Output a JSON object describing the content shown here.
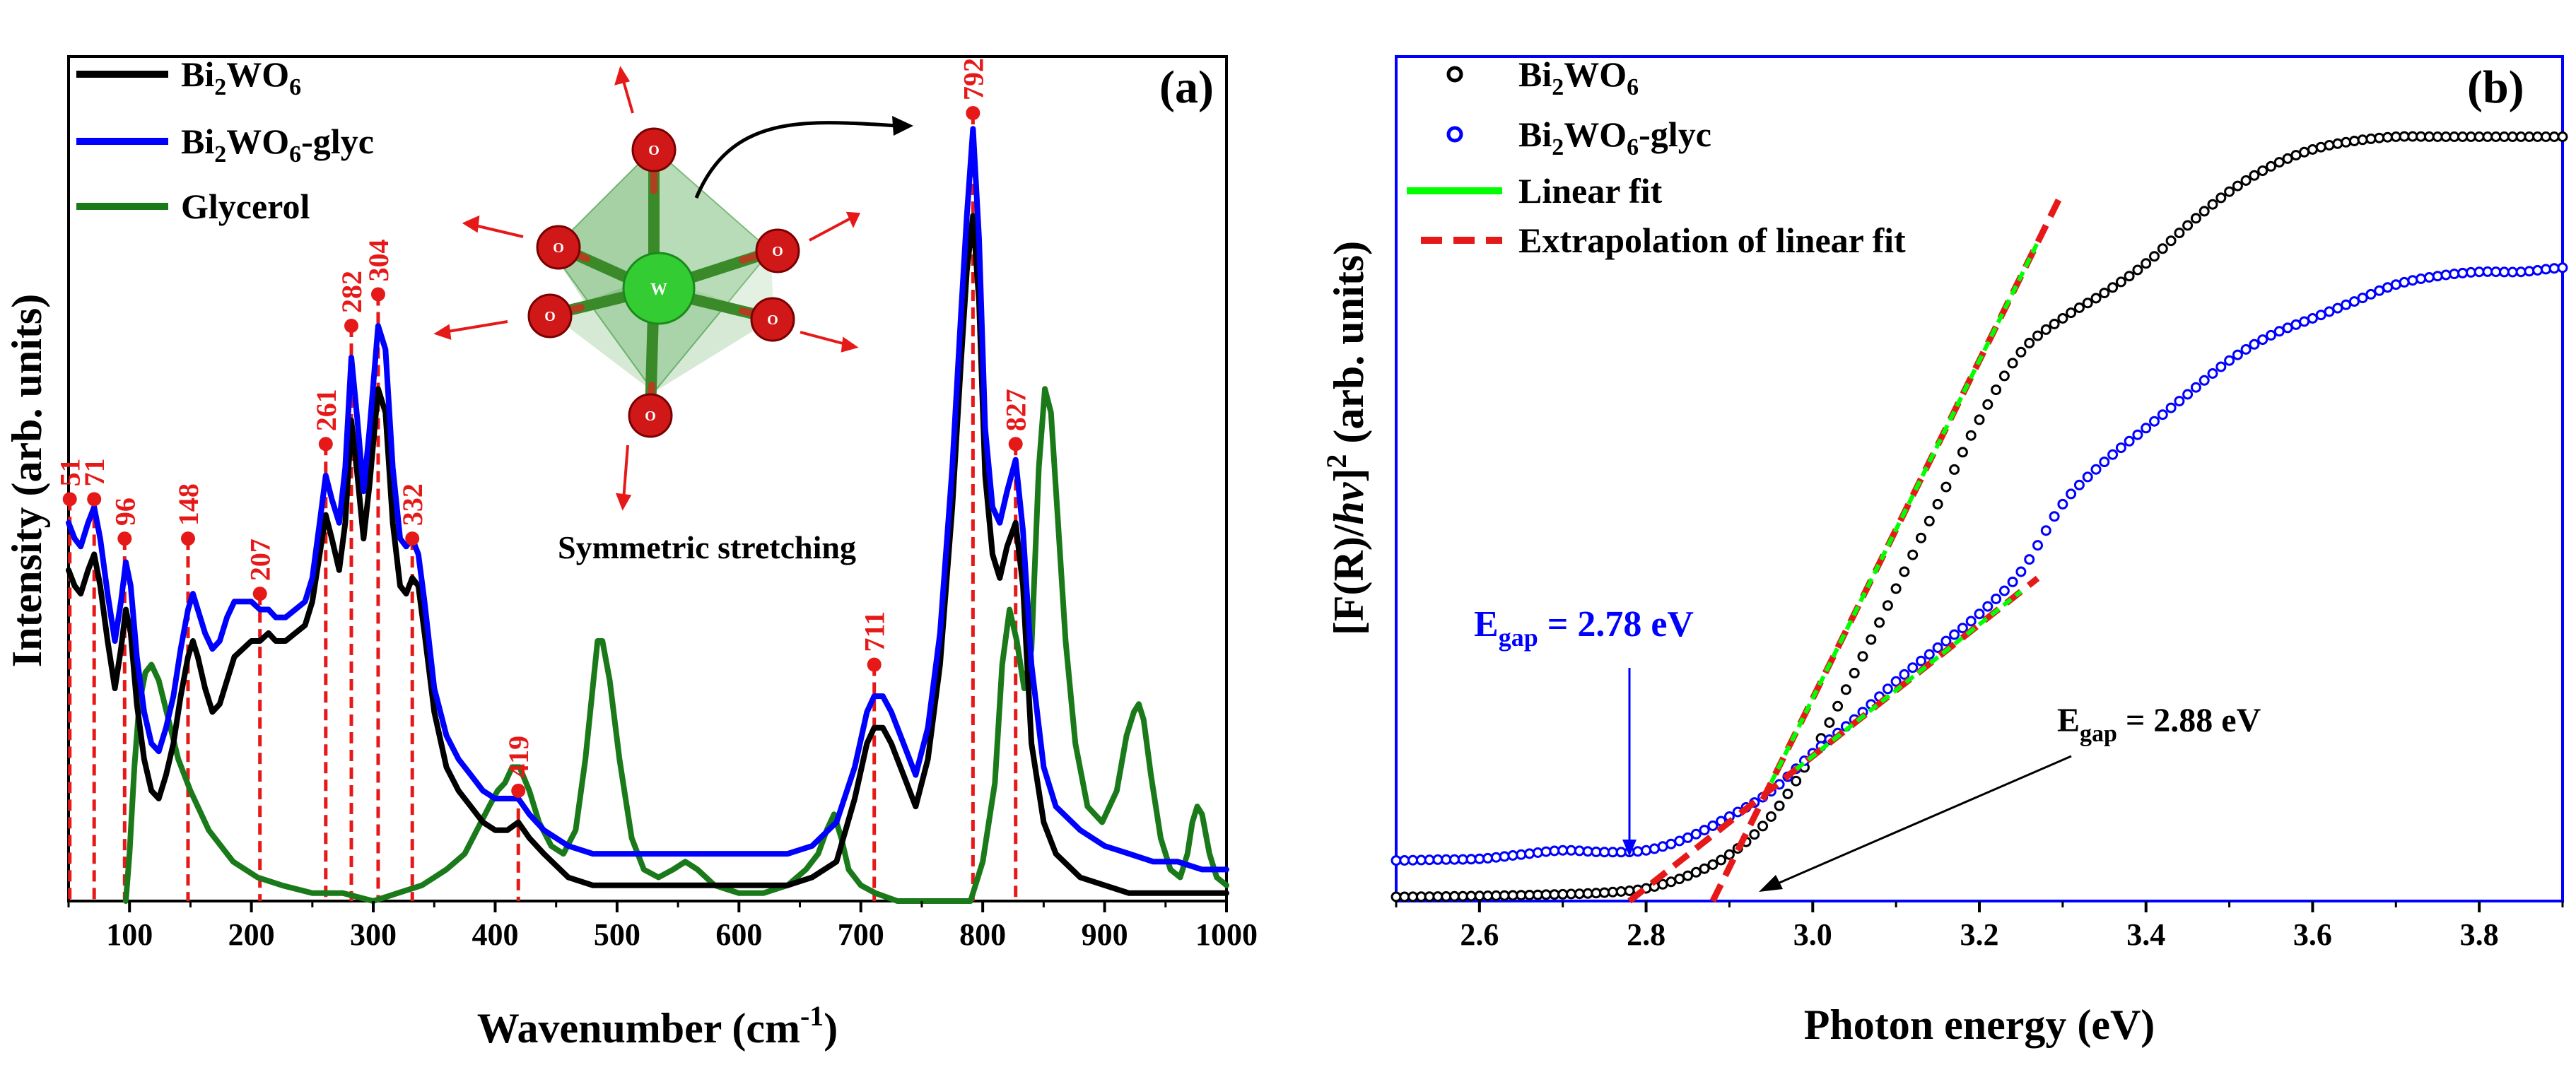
{
  "chart_data": [
    {
      "type": "line",
      "panel_label": "(a)",
      "xlabel": "Wavenumber (cm",
      "xlabel_sup": "-1",
      "xlabel_close": ")",
      "ylabel": "Intensity (arb. units)",
      "xlim": [
        50,
        1000
      ],
      "ylim": [
        0,
        1.0
      ],
      "xticks": [
        100,
        200,
        300,
        400,
        500,
        600,
        700,
        800,
        900,
        1000
      ],
      "xtick_labels": [
        "100",
        "200",
        "300",
        "400",
        "500",
        "600",
        "700",
        "800",
        "900",
        "1000"
      ],
      "colors": {
        "Bi2WO6": "#000000",
        "Bi2WO6-glyc": "#0000ff",
        "Glycerol": "#1a7a1a",
        "peaks": "#e61919"
      },
      "legend": [
        {
          "key": "Bi2WO6",
          "base": "Bi",
          "sub1": "2",
          "mid": "WO",
          "sub2": "6",
          "tail": ""
        },
        {
          "key": "Bi2WO6-glyc",
          "base": "Bi",
          "sub1": "2",
          "mid": "WO",
          "sub2": "6",
          "tail": "-glyc"
        },
        {
          "key": "Glycerol",
          "base": "Glycerol",
          "sub1": "",
          "mid": "",
          "sub2": "",
          "tail": ""
        }
      ],
      "inset_caption": "Symmetric stretching",
      "inset_atoms": {
        "center": "W",
        "ligand": "O"
      },
      "peaks": [
        {
          "x": 51,
          "y": 0.51,
          "label": "51"
        },
        {
          "x": 71,
          "y": 0.51,
          "label": "71"
        },
        {
          "x": 96,
          "y": 0.46,
          "label": "96"
        },
        {
          "x": 148,
          "y": 0.46,
          "label": "148"
        },
        {
          "x": 207,
          "y": 0.39,
          "label": "207"
        },
        {
          "x": 261,
          "y": 0.58,
          "label": "261"
        },
        {
          "x": 282,
          "y": 0.73,
          "label": "282"
        },
        {
          "x": 304,
          "y": 0.77,
          "label": "304"
        },
        {
          "x": 332,
          "y": 0.46,
          "label": "332"
        },
        {
          "x": 419,
          "y": 0.14,
          "label": "419"
        },
        {
          "x": 711,
          "y": 0.3,
          "label": "711"
        },
        {
          "x": 792,
          "y": 1.0,
          "label": "792"
        },
        {
          "x": 827,
          "y": 0.58,
          "label": "827"
        }
      ],
      "series": [
        {
          "name": "Bi2WO6",
          "x": [
            50,
            55,
            60,
            66,
            71,
            76,
            82,
            88,
            93,
            97,
            101,
            106,
            112,
            118,
            124,
            130,
            136,
            142,
            148,
            152,
            156,
            162,
            168,
            174,
            180,
            186,
            193,
            200,
            207,
            214,
            220,
            228,
            236,
            244,
            250,
            256,
            261,
            266,
            272,
            277,
            282,
            287,
            292,
            297,
            304,
            310,
            316,
            322,
            327,
            332,
            337,
            342,
            350,
            360,
            370,
            380,
            390,
            400,
            410,
            419,
            428,
            440,
            460,
            480,
            500,
            520,
            540,
            560,
            580,
            600,
            620,
            640,
            660,
            680,
            695,
            705,
            711,
            718,
            725,
            735,
            745,
            755,
            765,
            775,
            782,
            787,
            792,
            797,
            802,
            808,
            814,
            820,
            827,
            833,
            840,
            850,
            860,
            880,
            900,
            920,
            940,
            960,
            980,
            1000
          ],
          "y": [
            0.42,
            0.4,
            0.39,
            0.42,
            0.44,
            0.4,
            0.33,
            0.27,
            0.32,
            0.37,
            0.34,
            0.25,
            0.18,
            0.14,
            0.13,
            0.16,
            0.2,
            0.26,
            0.31,
            0.33,
            0.31,
            0.27,
            0.24,
            0.25,
            0.28,
            0.31,
            0.32,
            0.33,
            0.33,
            0.34,
            0.33,
            0.33,
            0.34,
            0.35,
            0.38,
            0.44,
            0.49,
            0.46,
            0.42,
            0.48,
            0.61,
            0.54,
            0.46,
            0.53,
            0.65,
            0.62,
            0.48,
            0.4,
            0.39,
            0.41,
            0.4,
            0.34,
            0.24,
            0.17,
            0.14,
            0.12,
            0.1,
            0.09,
            0.09,
            0.1,
            0.08,
            0.06,
            0.03,
            0.02,
            0.02,
            0.02,
            0.02,
            0.02,
            0.02,
            0.02,
            0.02,
            0.02,
            0.03,
            0.05,
            0.13,
            0.2,
            0.22,
            0.22,
            0.2,
            0.16,
            0.12,
            0.18,
            0.3,
            0.5,
            0.68,
            0.8,
            0.87,
            0.76,
            0.54,
            0.44,
            0.41,
            0.45,
            0.48,
            0.4,
            0.2,
            0.1,
            0.06,
            0.03,
            0.02,
            0.01,
            0.01,
            0.01,
            0.01,
            0.01
          ]
        },
        {
          "name": "Bi2WO6-glyc",
          "x": [
            50,
            55,
            60,
            66,
            71,
            76,
            82,
            88,
            93,
            97,
            101,
            106,
            112,
            118,
            124,
            130,
            136,
            142,
            148,
            152,
            156,
            162,
            168,
            174,
            180,
            186,
            193,
            200,
            207,
            214,
            220,
            228,
            236,
            244,
            250,
            256,
            261,
            266,
            272,
            277,
            282,
            287,
            292,
            297,
            304,
            310,
            316,
            322,
            327,
            332,
            337,
            342,
            350,
            360,
            370,
            380,
            390,
            400,
            410,
            419,
            428,
            440,
            460,
            480,
            500,
            520,
            540,
            560,
            580,
            600,
            620,
            640,
            660,
            680,
            695,
            705,
            711,
            718,
            725,
            735,
            745,
            755,
            765,
            775,
            782,
            787,
            792,
            797,
            802,
            808,
            814,
            820,
            827,
            833,
            840,
            850,
            860,
            880,
            900,
            920,
            940,
            960,
            980,
            1000
          ],
          "y": [
            0.48,
            0.46,
            0.45,
            0.48,
            0.5,
            0.46,
            0.39,
            0.33,
            0.38,
            0.43,
            0.4,
            0.31,
            0.24,
            0.2,
            0.19,
            0.22,
            0.26,
            0.32,
            0.37,
            0.39,
            0.37,
            0.34,
            0.32,
            0.33,
            0.36,
            0.38,
            0.38,
            0.38,
            0.37,
            0.37,
            0.36,
            0.36,
            0.37,
            0.38,
            0.41,
            0.48,
            0.54,
            0.51,
            0.48,
            0.55,
            0.69,
            0.61,
            0.52,
            0.6,
            0.73,
            0.7,
            0.55,
            0.46,
            0.45,
            0.46,
            0.44,
            0.38,
            0.27,
            0.21,
            0.18,
            0.16,
            0.14,
            0.13,
            0.13,
            0.13,
            0.11,
            0.09,
            0.07,
            0.06,
            0.06,
            0.06,
            0.06,
            0.06,
            0.06,
            0.06,
            0.06,
            0.06,
            0.07,
            0.1,
            0.17,
            0.24,
            0.26,
            0.26,
            0.24,
            0.2,
            0.16,
            0.22,
            0.34,
            0.55,
            0.74,
            0.87,
            0.98,
            0.84,
            0.6,
            0.5,
            0.48,
            0.52,
            0.56,
            0.47,
            0.3,
            0.17,
            0.12,
            0.09,
            0.07,
            0.06,
            0.05,
            0.05,
            0.04,
            0.04
          ]
        },
        {
          "name": "Glycerol",
          "x": [
            97,
            100,
            104,
            108,
            113,
            118,
            124,
            132,
            140,
            150,
            165,
            185,
            205,
            225,
            250,
            275,
            300,
            320,
            340,
            360,
            375,
            385,
            395,
            402,
            408,
            414,
            420,
            428,
            436,
            446,
            456,
            466,
            474,
            480,
            484,
            488,
            494,
            502,
            512,
            522,
            534,
            546,
            556,
            566,
            580,
            600,
            620,
            640,
            655,
            665,
            672,
            678,
            684,
            690,
            700,
            712,
            730,
            750,
            770,
            790,
            800,
            810,
            816,
            822,
            828,
            834,
            840,
            846,
            851,
            856,
            861,
            868,
            876,
            886,
            898,
            910,
            918,
            924,
            928,
            932,
            938,
            946,
            954,
            962,
            968,
            972,
            976,
            980,
            986,
            992,
            1000
          ],
          "y": [
            0.0,
            0.06,
            0.17,
            0.25,
            0.29,
            0.3,
            0.28,
            0.23,
            0.18,
            0.14,
            0.09,
            0.05,
            0.03,
            0.02,
            0.01,
            0.01,
            0.0,
            0.01,
            0.02,
            0.04,
            0.06,
            0.09,
            0.12,
            0.14,
            0.15,
            0.17,
            0.17,
            0.14,
            0.1,
            0.07,
            0.06,
            0.09,
            0.18,
            0.27,
            0.33,
            0.33,
            0.28,
            0.18,
            0.08,
            0.04,
            0.03,
            0.04,
            0.05,
            0.04,
            0.02,
            0.01,
            0.01,
            0.02,
            0.04,
            0.06,
            0.09,
            0.11,
            0.08,
            0.04,
            0.02,
            0.01,
            0.0,
            0.0,
            0.0,
            0.0,
            0.05,
            0.15,
            0.3,
            0.37,
            0.33,
            0.27,
            0.32,
            0.55,
            0.65,
            0.62,
            0.5,
            0.33,
            0.2,
            0.12,
            0.1,
            0.14,
            0.21,
            0.24,
            0.25,
            0.23,
            0.16,
            0.08,
            0.04,
            0.03,
            0.06,
            0.1,
            0.12,
            0.11,
            0.06,
            0.03,
            0.02
          ]
        }
      ]
    },
    {
      "type": "scatter",
      "panel_label": "(b)",
      "xlabel": "Photon energy (eV)",
      "ylabel": "[F(R)/hν]² (arb. units)",
      "ylabel_parts": {
        "open": "[F(R)/",
        "h": "h",
        "nu": "ν",
        "close": "]",
        "sup": "2",
        "tail": " (arb. units)"
      },
      "xlim": [
        2.5,
        3.9
      ],
      "ylim": [
        0,
        1.0
      ],
      "xticks": [
        2.6,
        2.8,
        3.0,
        3.2,
        3.4,
        3.6,
        3.8
      ],
      "xtick_labels": [
        "2.6",
        "2.8",
        "3.0",
        "3.2",
        "3.4",
        "3.6",
        "3.8"
      ],
      "colors": {
        "Bi2WO6": "#000000",
        "Bi2WO6-glyc": "#0000ff",
        "fit": "#00ff00",
        "extrapolation": "#e61919",
        "frame": "#0000ff"
      },
      "legend": [
        {
          "key": "Bi2WO6",
          "base": "Bi",
          "sub1": "2",
          "mid": "WO",
          "sub2": "6",
          "tail": "",
          "kind": "marker"
        },
        {
          "key": "Bi2WO6-glyc",
          "base": "Bi",
          "sub1": "2",
          "mid": "WO",
          "sub2": "6",
          "tail": "-glyc",
          "kind": "marker"
        },
        {
          "key": "fit",
          "base": "Linear fit",
          "sub1": "",
          "mid": "",
          "sub2": "",
          "tail": "",
          "kind": "line"
        },
        {
          "key": "extrapolation",
          "base": "Extrapolation of linear fit",
          "sub1": "",
          "mid": "",
          "sub2": "",
          "tail": "",
          "kind": "dash"
        }
      ],
      "annotations": [
        {
          "prefix": "E",
          "sub": "gap",
          "text": " = 2.78 eV",
          "x": 2.78,
          "color": "#0000ff"
        },
        {
          "prefix": "E",
          "sub": "gap",
          "text": " = 2.88 eV",
          "x": 2.88,
          "color": "#000000"
        }
      ],
      "series": [
        {
          "name": "Bi2WO6",
          "x": [
            2.5,
            2.6,
            2.7,
            2.75,
            2.8,
            2.85,
            2.9,
            2.95,
            3.0,
            3.05,
            3.1,
            3.15,
            3.2,
            3.25,
            3.3,
            3.35,
            3.4,
            3.45,
            3.5,
            3.55,
            3.6,
            3.65,
            3.7,
            3.75,
            3.8,
            3.85,
            3.9
          ],
          "y": [
            0.005,
            0.006,
            0.008,
            0.01,
            0.015,
            0.03,
            0.055,
            0.1,
            0.175,
            0.27,
            0.37,
            0.47,
            0.57,
            0.65,
            0.69,
            0.72,
            0.755,
            0.8,
            0.84,
            0.87,
            0.89,
            0.9,
            0.905,
            0.905,
            0.905,
            0.905,
            0.905
          ]
        },
        {
          "name": "Bi2WO6-glyc",
          "x": [
            2.5,
            2.55,
            2.6,
            2.65,
            2.7,
            2.75,
            2.8,
            2.85,
            2.9,
            2.95,
            3.0,
            3.05,
            3.1,
            3.15,
            3.2,
            3.25,
            3.3,
            3.35,
            3.4,
            3.45,
            3.5,
            3.55,
            3.6,
            3.65,
            3.7,
            3.75,
            3.8,
            3.85,
            3.9
          ],
          "y": [
            0.048,
            0.049,
            0.05,
            0.055,
            0.06,
            0.058,
            0.06,
            0.075,
            0.1,
            0.13,
            0.175,
            0.215,
            0.26,
            0.3,
            0.34,
            0.39,
            0.47,
            0.52,
            0.56,
            0.6,
            0.64,
            0.67,
            0.69,
            0.71,
            0.73,
            0.74,
            0.745,
            0.745,
            0.75
          ]
        }
      ],
      "fits": [
        {
          "name": "Bi2WO6",
          "fit_x": [
            2.95,
            3.27
          ],
          "extrap_x": [
            2.88,
            3.3
          ],
          "slope": 2.0,
          "intercept": -5.76
        },
        {
          "name": "Bi2WO6-glyc",
          "fit_x": [
            2.98,
            3.25
          ],
          "extrap_x": [
            2.78,
            3.27
          ],
          "slope": 0.78,
          "intercept": -2.1684
        }
      ]
    }
  ]
}
